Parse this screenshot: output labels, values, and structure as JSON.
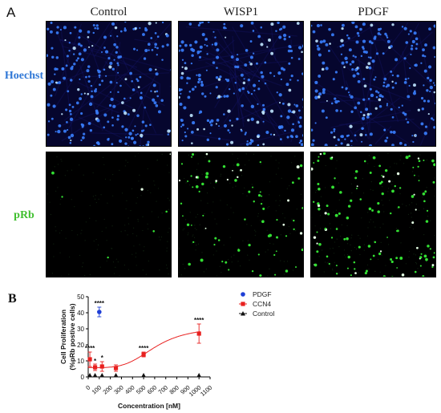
{
  "figure": {
    "panel_a_label": "A",
    "panel_b_label": "B",
    "columns": [
      "Control",
      "WISP1",
      "PDGF"
    ],
    "rows": [
      {
        "label": "Hoechst",
        "color": "#2f77d6"
      },
      {
        "label": "pRb",
        "color": "#3fbf2e"
      }
    ],
    "micrograph_colors": {
      "hoechst_bg": "#06062e",
      "hoechst_nucleus": "#3a7fff",
      "prb_bg": "#000000",
      "prb_nucleus": "#33e033"
    },
    "green_cell_density": {
      "Control": 0.05,
      "WISP1": 0.6,
      "PDGF": 1.0
    }
  },
  "chart_data": {
    "type": "scatter",
    "ylabel_line1": "Cell Proliferation",
    "ylabel_line2": "(%pRb postive cells)",
    "xlabel": "Concentration [nM]",
    "xlim": [
      0,
      1100
    ],
    "ylim": [
      0,
      50
    ],
    "xticks": [
      0,
      100,
      200,
      300,
      400,
      500,
      600,
      700,
      800,
      900,
      1000,
      1100
    ],
    "yticks": [
      0,
      10,
      20,
      30,
      40,
      50
    ],
    "legend_position": "top-right",
    "series": [
      {
        "name": "PDGF",
        "color": "#1f3fd6",
        "marker": "circle",
        "points": [
          {
            "x": 100,
            "y": 40.5,
            "err": 3
          }
        ]
      },
      {
        "name": "CCN4",
        "color": "#e8201f",
        "marker": "square",
        "points": [
          {
            "x": 15,
            "y": 11,
            "err": 4.5
          },
          {
            "x": 62,
            "y": 6,
            "err": 2
          },
          {
            "x": 125,
            "y": 6.5,
            "err": 3
          },
          {
            "x": 250,
            "y": 5.5,
            "err": 2
          },
          {
            "x": 500,
            "y": 14,
            "err": 1.5
          },
          {
            "x": 1000,
            "y": 27,
            "err": 6
          }
        ]
      },
      {
        "name": "Control",
        "color": "#111111",
        "marker": "triangle",
        "points": [
          {
            "x": 15,
            "y": 1
          },
          {
            "x": 62,
            "y": 1
          },
          {
            "x": 125,
            "y": 1
          },
          {
            "x": 250,
            "y": 1
          },
          {
            "x": 500,
            "y": 1
          },
          {
            "x": 1000,
            "y": 1
          }
        ]
      }
    ],
    "fit_curve": {
      "series": "CCN4",
      "color": "#e8201f",
      "bottom": 5.8,
      "top": 31,
      "ec50": 600,
      "hill": 4
    },
    "annotations": [
      {
        "text": "****",
        "x": 15,
        "y": 16.5
      },
      {
        "text": "*",
        "x": 62,
        "y": 8.5
      },
      {
        "text": "*",
        "x": 125,
        "y": 10.5
      },
      {
        "text": "****",
        "x": 100,
        "y": 44.5
      },
      {
        "text": "****",
        "x": 500,
        "y": 16.5
      },
      {
        "text": "****",
        "x": 1000,
        "y": 34
      }
    ]
  }
}
